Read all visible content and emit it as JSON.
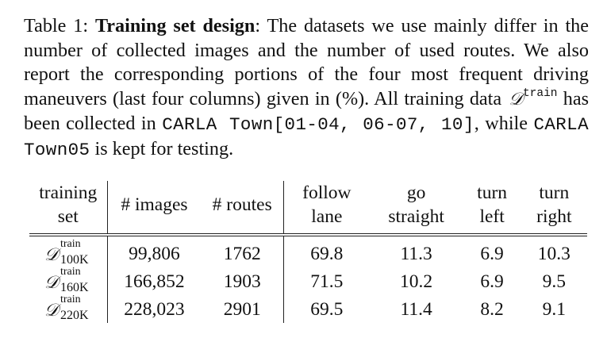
{
  "caption": {
    "label": "Table 1:",
    "title": "Training set design",
    "text1": ": The datasets we use mainly differ in the number of collected images and the number of used routes. We also report the corresponding portions of the four most frequent driving maneuvers (last four columns) given in (%). All training data ",
    "symbol": "𝒟",
    "symbol_sup": "train",
    "text2": " has been collected in ",
    "code1": "CARLA Town[01-04, 06-07, 10]",
    "text3": ", while ",
    "code2": "CARLA Town05",
    "text4": " is kept for testing."
  },
  "table": {
    "headers": {
      "set_line1": "training",
      "set_line2": "set",
      "images": "# images",
      "routes": "# routes",
      "follow_line1": "follow",
      "follow_line2": "lane",
      "go_line1": "go",
      "go_line2": "straight",
      "left_line1": "turn",
      "left_line2": "left",
      "right_line1": "turn",
      "right_line2": "right"
    },
    "rows": [
      {
        "symbol": "𝒟",
        "sup": "train",
        "sub": "100K",
        "images": "99,806",
        "routes": "1762",
        "follow_lane": "69.8",
        "go_straight": "11.3",
        "turn_left": "6.9",
        "turn_right": "10.3"
      },
      {
        "symbol": "𝒟",
        "sup": "train",
        "sub": "160K",
        "images": "166,852",
        "routes": "1903",
        "follow_lane": "71.5",
        "go_straight": "10.2",
        "turn_left": "6.9",
        "turn_right": "9.5"
      },
      {
        "symbol": "𝒟",
        "sup": "train",
        "sub": "220K",
        "images": "228,023",
        "routes": "2901",
        "follow_lane": "69.5",
        "go_straight": "11.4",
        "turn_left": "8.2",
        "turn_right": "9.1"
      }
    ]
  }
}
